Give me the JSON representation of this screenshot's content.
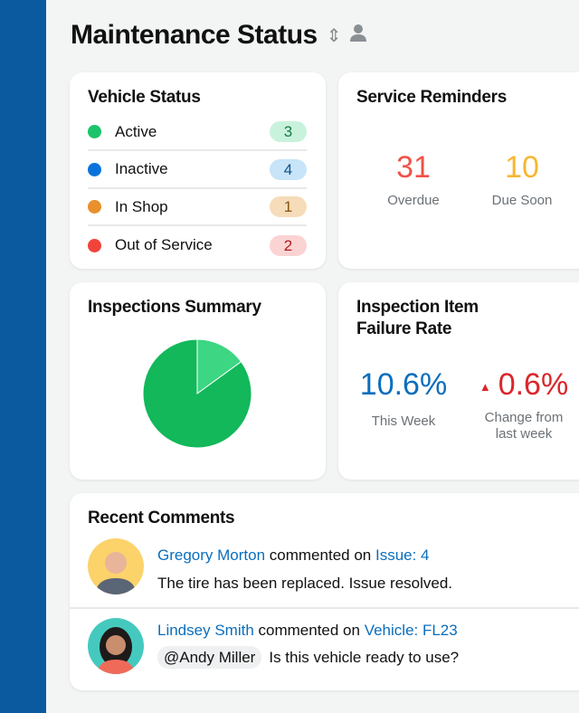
{
  "page": {
    "title": "Maintenance Status",
    "sort_icon": "chevron-up-down-icon",
    "user_icon": "person-icon"
  },
  "vehicle_status": {
    "title": "Vehicle Status",
    "items": [
      {
        "label": "Active",
        "count": "3",
        "color": "#1bc46a",
        "badge_bg": "#c9f2dc",
        "badge_fg": "#1a7a45"
      },
      {
        "label": "Inactive",
        "count": "4",
        "color": "#0b72dc",
        "badge_bg": "#c7e4f8",
        "badge_fg": "#15528a"
      },
      {
        "label": "In Shop",
        "count": "1",
        "color": "#e8902a",
        "badge_bg": "#f6dcb9",
        "badge_fg": "#8a5410"
      },
      {
        "label": "Out of Service",
        "count": "2",
        "color": "#f0443a",
        "badge_bg": "#fbd3d3",
        "badge_fg": "#b01a1a"
      }
    ]
  },
  "service_reminders": {
    "title": "Service Reminders",
    "overdue": {
      "value": "31",
      "label": "Overdue",
      "color": "#f0534a"
    },
    "due_soon": {
      "value": "10",
      "label": "Due Soon",
      "color": "#f7b731"
    }
  },
  "inspections_summary": {
    "title": "Inspections Summary",
    "chart_data": {
      "type": "pie",
      "slices": [
        {
          "value": 85,
          "color": "#12b85a"
        },
        {
          "value": 15,
          "color": "#3dd683"
        }
      ]
    }
  },
  "failure_rate": {
    "title_line1": "Inspection Item",
    "title_line2": "Failure Rate",
    "this_week": {
      "value": "10.6%",
      "label": "This Week",
      "color": "#0b6ebd"
    },
    "change": {
      "value": "0.6%",
      "label_line1": "Change from",
      "label_line2": "last week",
      "color": "#d9262b",
      "icon": "triangle-up-icon"
    }
  },
  "recent_comments": {
    "title": "Recent Comments",
    "items": [
      {
        "author": "Gregory Morton",
        "action": "commented on",
        "target": "Issue: 4",
        "mention": "",
        "text": "The tire has been replaced. Issue resolved.",
        "avatar_bg": "#fcd26a"
      },
      {
        "author": "Lindsey Smith",
        "action": "commented on",
        "target": "Vehicle: FL23",
        "mention": "@Andy Miller",
        "text": "Is this vehicle ready to use?",
        "avatar_bg": "#45c9bf"
      }
    ]
  }
}
